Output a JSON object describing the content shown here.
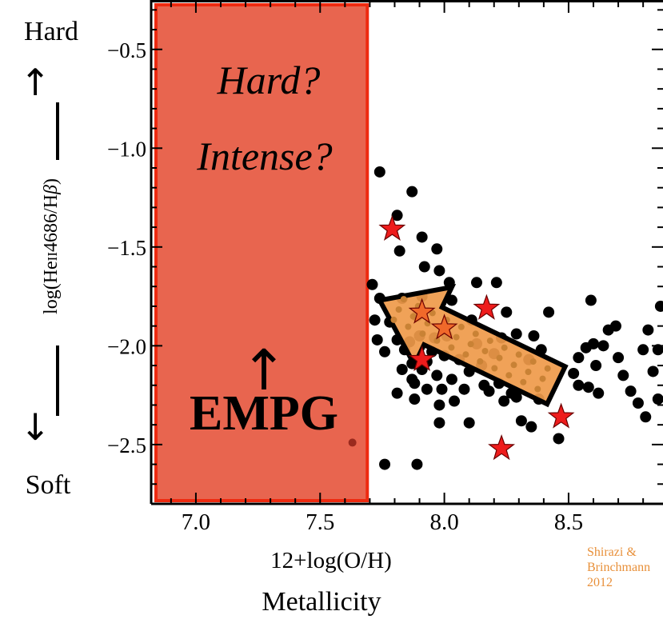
{
  "side_labels": {
    "hard": "Hard",
    "soft": "Soft",
    "up_arrow": "↑",
    "down_arrow": "↓"
  },
  "metallicity_label": "Metallicity",
  "credit": "Shirazi & Brinchmann 2012",
  "colors": {
    "box_fill": "#e8654f",
    "box_border": "#ee2a10",
    "points": "#000000",
    "stars": "#ee1c1c",
    "arrow_fill": "#ef9a4a",
    "credit_text": "#e8903a"
  },
  "chart_data": {
    "type": "scatter",
    "xlabel": "12+log(O/H)",
    "ylabel": "log(HeII4686/Hβ)",
    "ylabel_parts": [
      "log(He",
      "II",
      "4686/H",
      "β",
      ")"
    ],
    "xlim": [
      6.82,
      8.88
    ],
    "ylim": [
      -2.8,
      -0.25
    ],
    "xticks": [
      7.0,
      7.5,
      8.0,
      8.5
    ],
    "xtick_labels": [
      "7.0",
      "7.5",
      "8.0",
      "8.5"
    ],
    "yticks": [
      -0.5,
      -1.0,
      -1.5,
      -2.0,
      -2.5
    ],
    "ytick_labels": [
      "−0.5",
      "−1.0",
      "−1.5",
      "−2.0",
      "−2.5"
    ],
    "region": {
      "name": "EMPG",
      "x_range": [
        6.82,
        7.69
      ],
      "texts": [
        "Hard?",
        "Intense?",
        "↑",
        "EMPG"
      ]
    },
    "trend_arrow": {
      "from": [
        8.45,
        -2.2
      ],
      "to": [
        7.74,
        -1.77
      ]
    },
    "series": [
      {
        "marker": "circle",
        "points": [
          [
            7.63,
            -2.49
          ],
          [
            7.76,
            -2.6
          ],
          [
            7.89,
            -2.6
          ],
          [
            7.71,
            -1.69
          ],
          [
            7.74,
            -1.76
          ],
          [
            7.72,
            -1.87
          ],
          [
            7.73,
            -1.97
          ],
          [
            7.76,
            -2.03
          ],
          [
            7.78,
            -1.88
          ],
          [
            7.83,
            -1.76
          ],
          [
            7.81,
            -1.97
          ],
          [
            7.83,
            -2.12
          ],
          [
            7.84,
            -2.02
          ],
          [
            7.86,
            -1.98
          ],
          [
            7.87,
            -2.09
          ],
          [
            7.87,
            -2.17
          ],
          [
            7.88,
            -2.27
          ],
          [
            7.9,
            -1.95
          ],
          [
            7.91,
            -2.12
          ],
          [
            7.93,
            -2.22
          ],
          [
            7.93,
            -2.08
          ],
          [
            7.95,
            -2.03
          ],
          [
            7.96,
            -1.96
          ],
          [
            7.97,
            -2.15
          ],
          [
            7.98,
            -2.3
          ],
          [
            7.99,
            -2.22
          ],
          [
            8.0,
            -2.05
          ],
          [
            8.01,
            -1.95
          ],
          [
            8.03,
            -2.17
          ],
          [
            8.04,
            -2.28
          ],
          [
            8.06,
            -2.07
          ],
          [
            8.08,
            -2.22
          ],
          [
            8.1,
            -2.13
          ],
          [
            8.13,
            -1.99
          ],
          [
            8.15,
            -2.1
          ],
          [
            8.16,
            -2.2
          ],
          [
            8.18,
            -2.23
          ],
          [
            8.22,
            -2.19
          ],
          [
            8.24,
            -2.28
          ],
          [
            8.27,
            -2.24
          ],
          [
            8.29,
            -2.26
          ],
          [
            8.31,
            -2.38
          ],
          [
            8.35,
            -2.41
          ],
          [
            8.38,
            -2.27
          ],
          [
            7.98,
            -2.39
          ],
          [
            8.1,
            -2.39
          ],
          [
            7.81,
            -2.24
          ],
          [
            7.88,
            -2.19
          ],
          [
            7.87,
            -1.22
          ],
          [
            7.81,
            -1.34
          ],
          [
            7.74,
            -1.12
          ],
          [
            7.82,
            -1.52
          ],
          [
            7.91,
            -1.45
          ],
          [
            7.92,
            -1.6
          ],
          [
            7.97,
            -1.51
          ],
          [
            7.98,
            -1.62
          ],
          [
            8.02,
            -1.68
          ],
          [
            7.91,
            -1.75
          ],
          [
            7.89,
            -1.85
          ],
          [
            8.03,
            -1.77
          ],
          [
            8.11,
            -1.87
          ],
          [
            8.13,
            -1.68
          ],
          [
            8.21,
            -1.68
          ],
          [
            8.25,
            -1.83
          ],
          [
            8.23,
            -1.96
          ],
          [
            8.29,
            -1.94
          ],
          [
            8.36,
            -1.95
          ],
          [
            8.39,
            -2.02
          ],
          [
            8.42,
            -1.83
          ],
          [
            8.34,
            -2.07
          ],
          [
            8.2,
            -2.04
          ],
          [
            8.52,
            -2.14
          ],
          [
            8.54,
            -2.06
          ],
          [
            8.57,
            -2.01
          ],
          [
            8.6,
            -1.99
          ],
          [
            8.61,
            -2.1
          ],
          [
            8.62,
            -2.24
          ],
          [
            8.64,
            -2.0
          ],
          [
            8.66,
            -1.92
          ],
          [
            8.69,
            -1.9
          ],
          [
            8.7,
            -2.06
          ],
          [
            8.72,
            -2.15
          ],
          [
            8.75,
            -2.23
          ],
          [
            8.78,
            -2.29
          ],
          [
            8.8,
            -2.02
          ],
          [
            8.82,
            -1.92
          ],
          [
            8.84,
            -2.13
          ],
          [
            8.86,
            -2.02
          ],
          [
            8.87,
            -1.8
          ],
          [
            8.54,
            -2.2
          ],
          [
            8.59,
            -1.77
          ],
          [
            8.86,
            -2.27
          ],
          [
            8.81,
            -2.36
          ],
          [
            8.46,
            -2.47
          ],
          [
            8.58,
            -2.21
          ]
        ]
      },
      {
        "marker": "star",
        "points": [
          [
            7.79,
            -1.41
          ],
          [
            7.91,
            -1.83
          ],
          [
            8.0,
            -1.91
          ],
          [
            8.17,
            -1.81
          ],
          [
            7.91,
            -2.07
          ],
          [
            8.47,
            -2.36
          ],
          [
            8.23,
            -2.52
          ]
        ]
      }
    ]
  }
}
